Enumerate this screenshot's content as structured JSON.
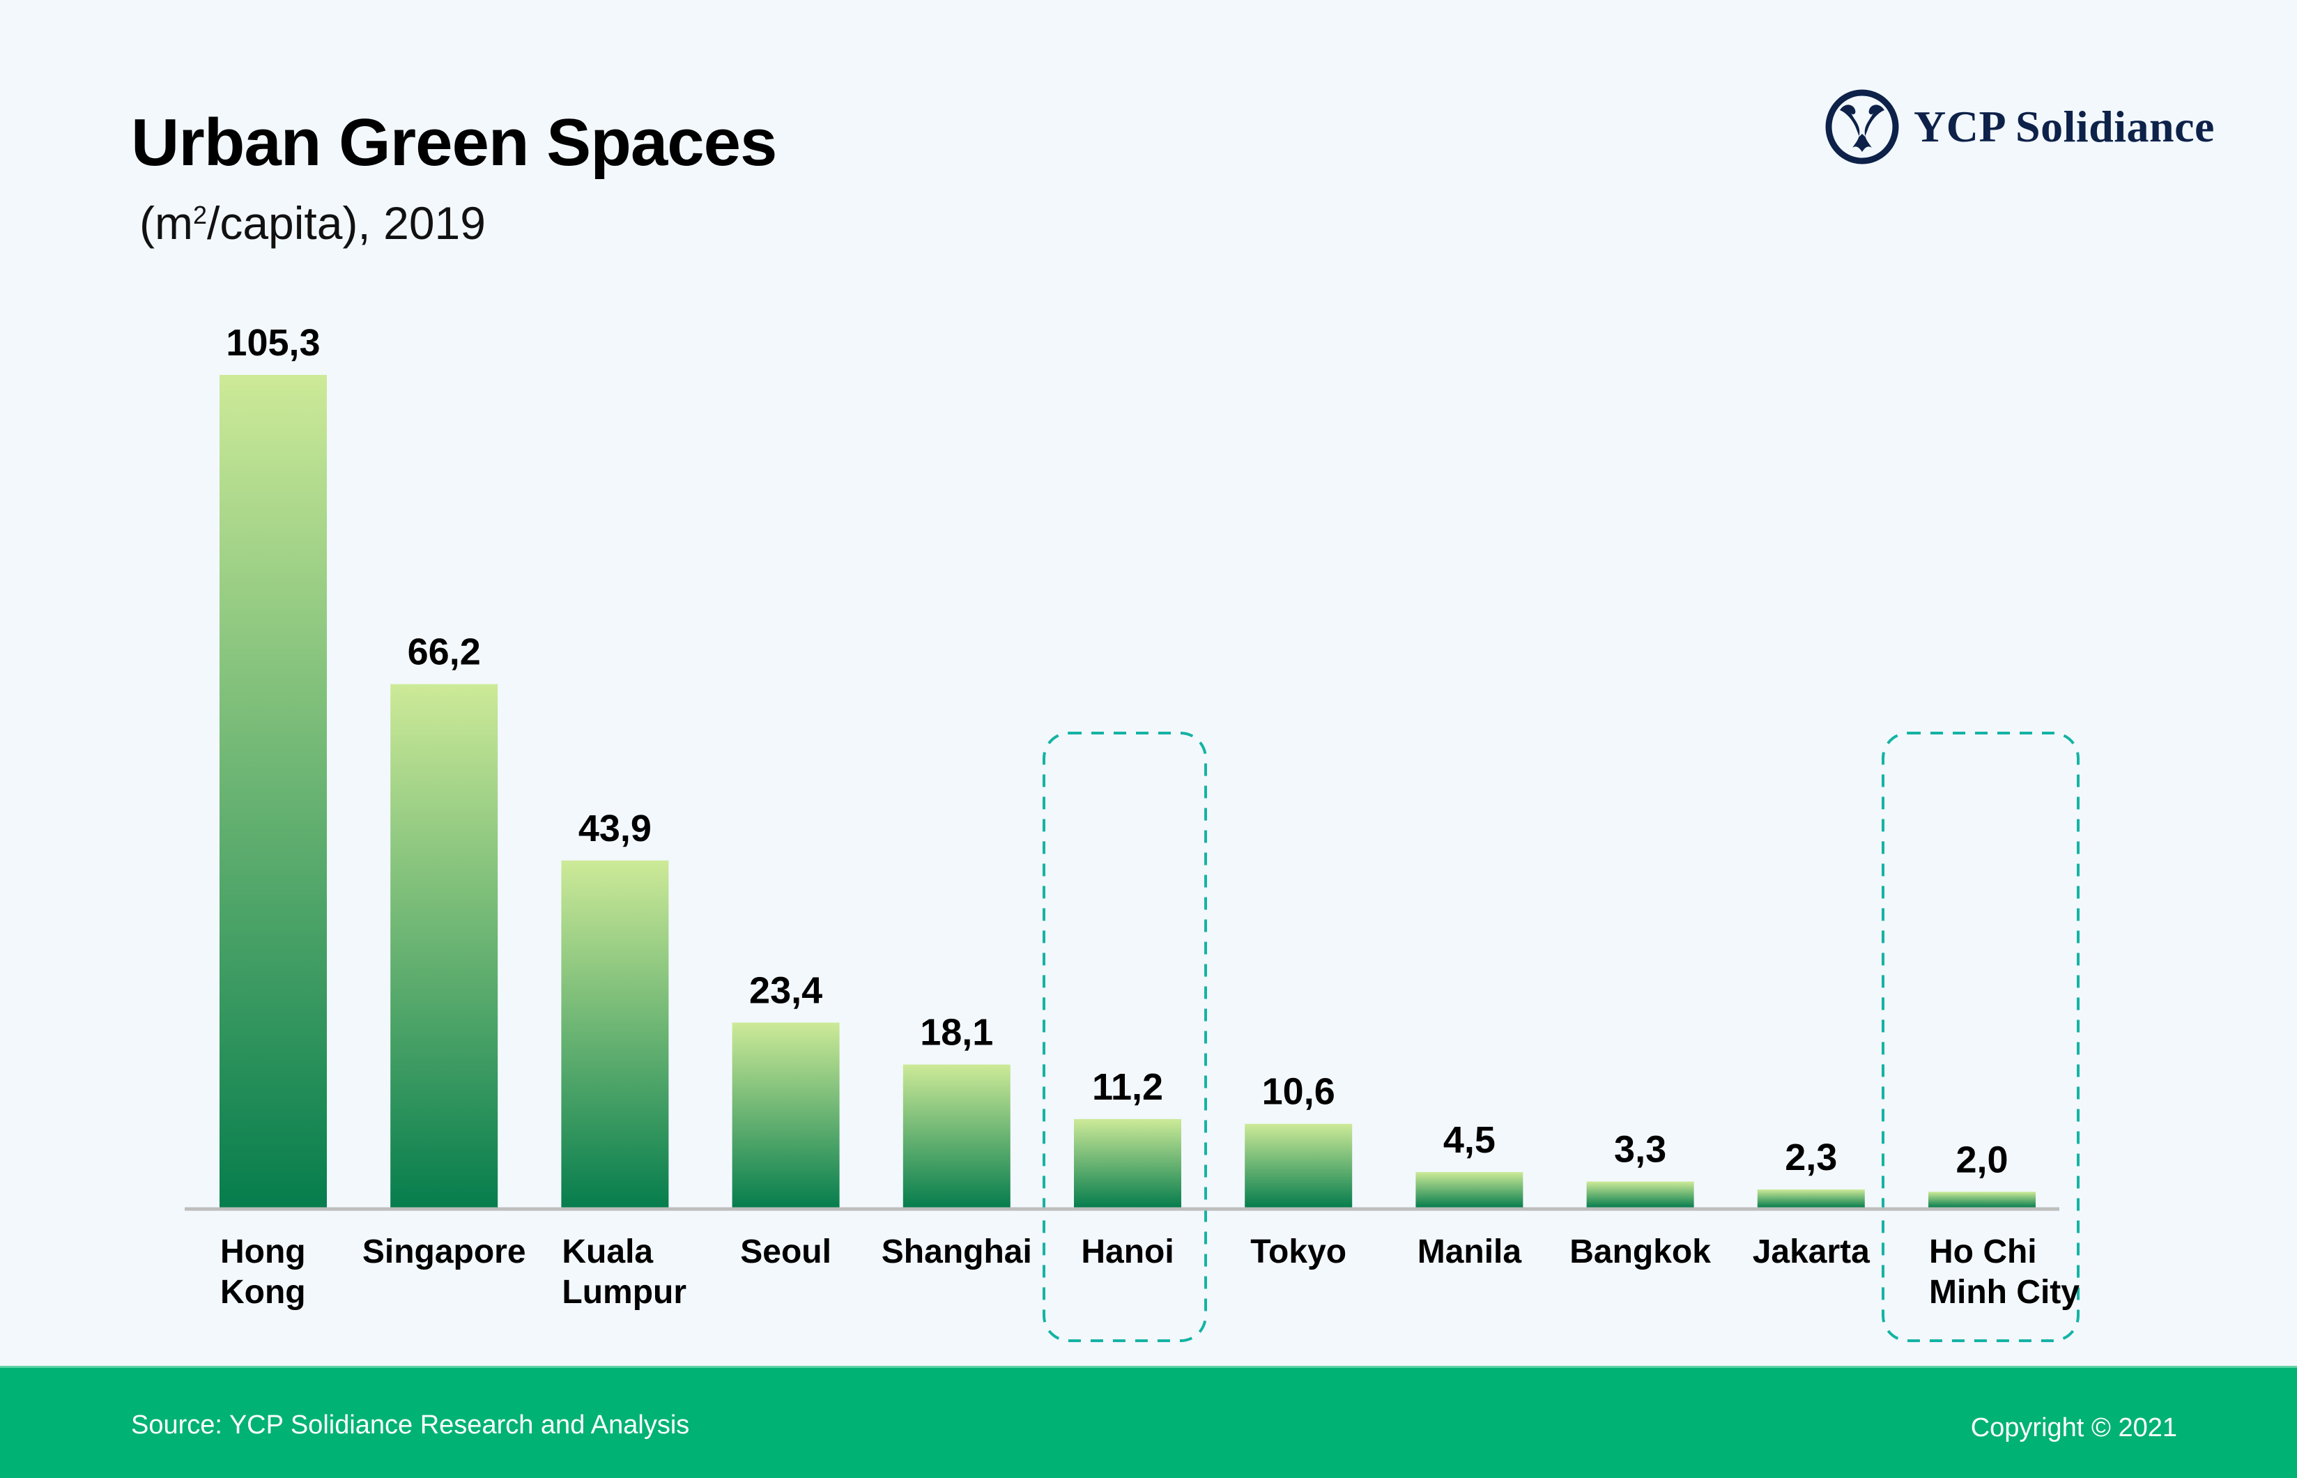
{
  "header": {
    "title": "Urban Green Spaces",
    "subtitle_prefix": "(m",
    "subtitle_sup": "2",
    "subtitle_suffix": "/capita), 2019"
  },
  "logo": {
    "text": "YCP Solidiance",
    "icon": "ycp-emblem-icon",
    "color": "#0d2149"
  },
  "footer": {
    "source": "Source: YCP Solidiance Research and Analysis",
    "copyright": "Copyright © 2021",
    "background": "#00b274"
  },
  "chart_data": {
    "type": "bar",
    "title": "Urban Green Spaces",
    "subtitle": "(m²/capita), 2019",
    "xlabel": "",
    "ylabel": "m²/capita",
    "ylim": [
      0,
      105.3
    ],
    "grid": false,
    "legend": "none",
    "categories": [
      [
        "Hong",
        "Kong"
      ],
      [
        "Singapore"
      ],
      [
        "Kuala",
        "Lumpur"
      ],
      [
        "Seoul"
      ],
      [
        "Shanghai"
      ],
      [
        "Hanoi"
      ],
      [
        "Tokyo"
      ],
      [
        "Manila"
      ],
      [
        "Bangkok"
      ],
      [
        "Jakarta"
      ],
      [
        "Ho Chi",
        "Minh City"
      ]
    ],
    "values": [
      105.3,
      66.2,
      43.9,
      23.4,
      18.1,
      11.2,
      10.6,
      4.5,
      3.3,
      2.3,
      2.0
    ],
    "value_labels": [
      "105,3",
      "66,2",
      "43,9",
      "23,4",
      "18,1",
      "11,2",
      "10,6",
      "4,5",
      "3,3",
      "2,3",
      "2,0"
    ],
    "highlighted": [
      "Hanoi",
      "Ho Chi Minh City"
    ],
    "colors": {
      "bar_top": "#cdea98",
      "bar_bottom": "#067d4d",
      "axis": "#bdbdbd",
      "highlight_border": "#14b3a3"
    }
  }
}
